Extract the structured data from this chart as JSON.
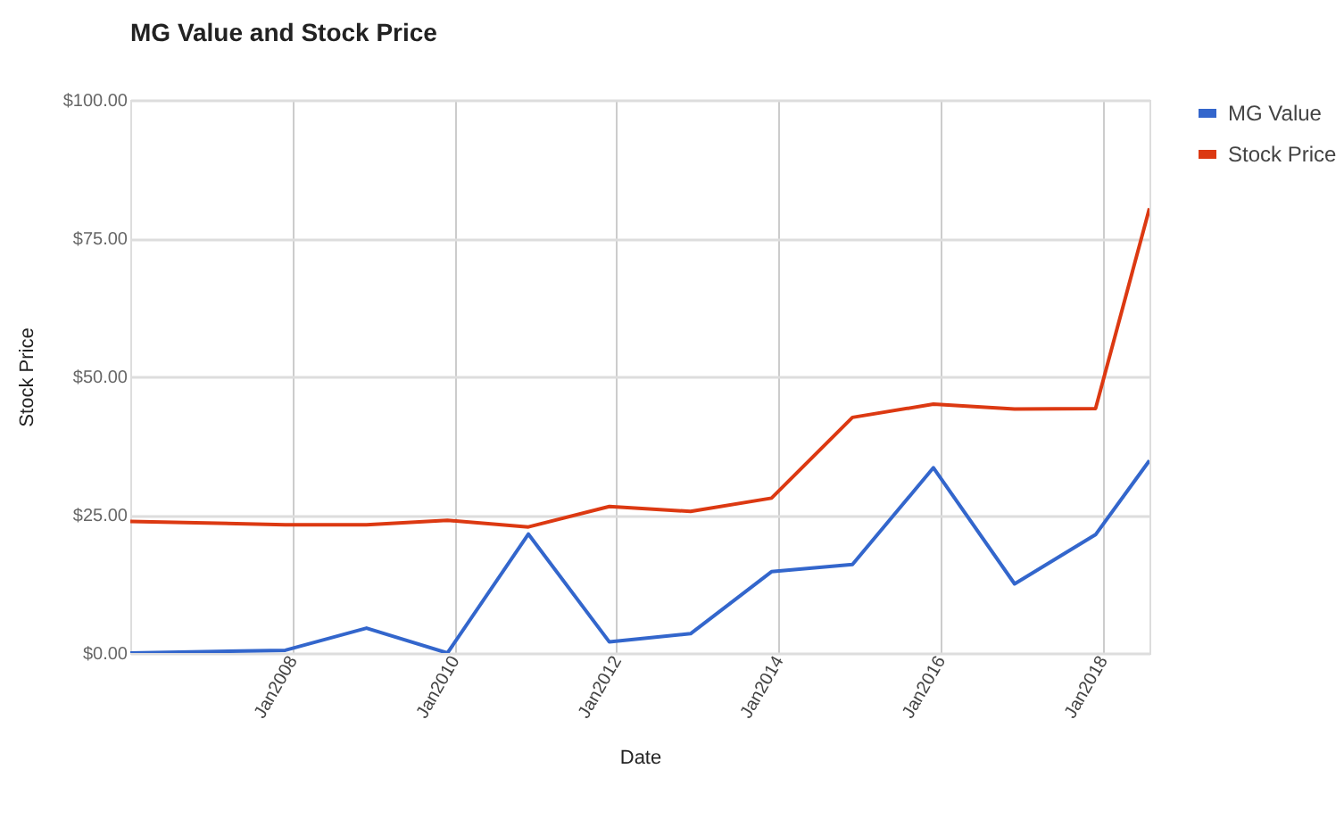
{
  "chart_data": {
    "type": "line",
    "title": "MG Value and Stock Price",
    "xlabel": "Date",
    "ylabel": "Stock Price",
    "x": [
      "2006-01-01",
      "2007-12-01",
      "2008-12-01",
      "2009-12-01",
      "2010-12-01",
      "2011-12-01",
      "2012-12-01",
      "2013-12-01",
      "2014-12-01",
      "2015-12-01",
      "2016-12-01",
      "2017-12-01",
      "2018-08-01"
    ],
    "series": [
      {
        "name": "MG Value",
        "color": "#3366cc",
        "values": [
          0,
          0.5,
          4.5,
          0,
          21.5,
          2,
          3.5,
          14.7,
          16,
          33.5,
          12.5,
          21.4,
          34.8
        ]
      },
      {
        "name": "Stock Price",
        "color": "#dc3912",
        "values": [
          23.8,
          23.2,
          23.2,
          24,
          22.8,
          26.5,
          25.6,
          28,
          42.6,
          45,
          44.1,
          44.2,
          80.4
        ]
      }
    ],
    "xlim": [
      "2006-01-01",
      "2018-08-01"
    ],
    "xticks": [
      {
        "value": "2008-01-01",
        "label": "Jan2008"
      },
      {
        "value": "2010-01-01",
        "label": "Jan2010"
      },
      {
        "value": "2012-01-01",
        "label": "Jan2012"
      },
      {
        "value": "2014-01-01",
        "label": "Jan2014"
      },
      {
        "value": "2016-01-01",
        "label": "Jan2016"
      },
      {
        "value": "2018-01-01",
        "label": "Jan2018"
      }
    ],
    "ylim": [
      0,
      100
    ],
    "yticks": [
      {
        "value": 0,
        "label": "$0.00"
      },
      {
        "value": 25,
        "label": "$25.00"
      },
      {
        "value": 50,
        "label": "$50.00"
      },
      {
        "value": 75,
        "label": "$75.00"
      },
      {
        "value": 100,
        "label": "$100.00"
      }
    ],
    "grid": true,
    "legend": "top right"
  }
}
